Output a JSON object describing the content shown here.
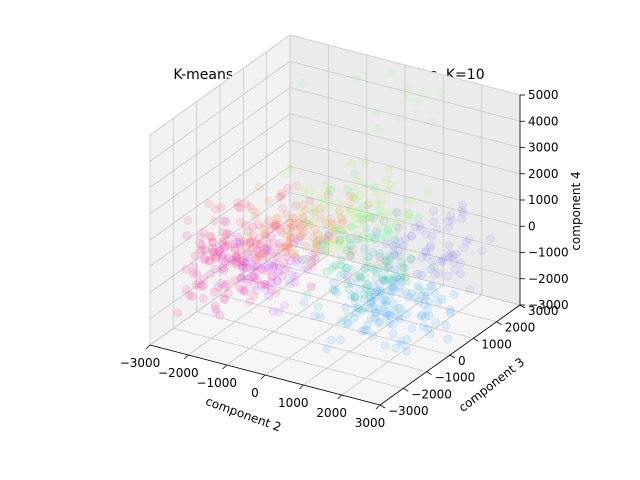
{
  "chart_data": {
    "type": "scatter",
    "projection": "3d",
    "title": "K-means clustering of political parties. K=10",
    "x_axis": {
      "label": "component 2",
      "range": [
        -3000,
        3000
      ],
      "ticks": [
        "−3000",
        "−2000",
        "−1000",
        "0",
        "1000",
        "2000",
        "3000"
      ]
    },
    "y_axis": {
      "label": "component 3",
      "range": [
        -3000,
        3000
      ],
      "ticks": [
        "−3000",
        "−2000",
        "−1000",
        "0",
        "1000",
        "2000",
        "3000"
      ]
    },
    "z_axis": {
      "label": "component 4",
      "range": [
        -3000,
        5000
      ],
      "ticks": [
        "−3000",
        "−2000",
        "−1000",
        "0",
        "1000",
        "2000",
        "3000",
        "4000",
        "5000"
      ]
    },
    "grid": true,
    "clusters": 10,
    "cluster_colors": [
      "#ff1493",
      "#ff4060",
      "#ff8040",
      "#a0ff40",
      "#40ff80",
      "#20c0a0",
      "#20a0ff",
      "#8080ff",
      "#c040ff",
      "#90ff90"
    ],
    "cluster_centers": [
      {
        "x": -2400,
        "y": -600,
        "z": -1200,
        "spread": 700,
        "n": 110
      },
      {
        "x": -1600,
        "y": -300,
        "z": -200,
        "spread": 700,
        "n": 90
      },
      {
        "x": -800,
        "y": 0,
        "z": 400,
        "spread": 650,
        "n": 70
      },
      {
        "x": 200,
        "y": 300,
        "z": 1400,
        "spread": 700,
        "n": 70
      },
      {
        "x": 600,
        "y": 200,
        "z": 800,
        "spread": 650,
        "n": 40
      },
      {
        "x": 1000,
        "y": -300,
        "z": -600,
        "spread": 700,
        "n": 80
      },
      {
        "x": 1800,
        "y": -600,
        "z": -1400,
        "spread": 700,
        "n": 110
      },
      {
        "x": 2200,
        "y": 500,
        "z": 600,
        "spread": 700,
        "n": 70
      },
      {
        "x": -1800,
        "y": 200,
        "z": -1800,
        "spread": 600,
        "n": 60
      },
      {
        "x": 500,
        "y": 2200,
        "z": 4300,
        "spread": 900,
        "n": 12
      }
    ]
  }
}
